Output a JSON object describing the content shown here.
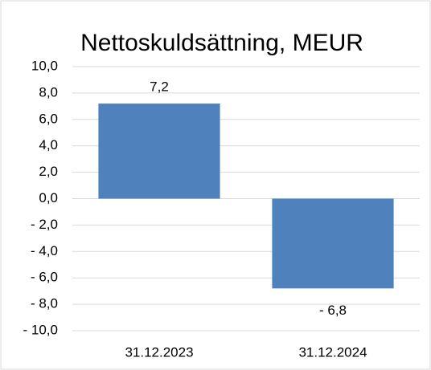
{
  "chart_data": {
    "type": "bar",
    "title": "Nettoskuldsättning, MEUR",
    "categories": [
      "31.12.2023",
      "31.12.2024"
    ],
    "values": [
      7.2,
      -6.8
    ],
    "value_labels": [
      "7,2",
      "- 6,8"
    ],
    "color": "#4f81bd",
    "ylim": [
      -10,
      10
    ],
    "yticks": [
      {
        "value": -10,
        "label": "- 10,0"
      },
      {
        "value": -8,
        "label": "- 8,0"
      },
      {
        "value": -6,
        "label": "- 6,0"
      },
      {
        "value": -4,
        "label": "- 4,0"
      },
      {
        "value": -2,
        "label": "- 2,0"
      },
      {
        "value": 0,
        "label": "0,0"
      },
      {
        "value": 2,
        "label": "2,0"
      },
      {
        "value": 4,
        "label": "4,0"
      },
      {
        "value": 6,
        "label": "6,0"
      },
      {
        "value": 8,
        "label": "8,0"
      },
      {
        "value": 10,
        "label": "10,0"
      }
    ],
    "grid": true
  }
}
